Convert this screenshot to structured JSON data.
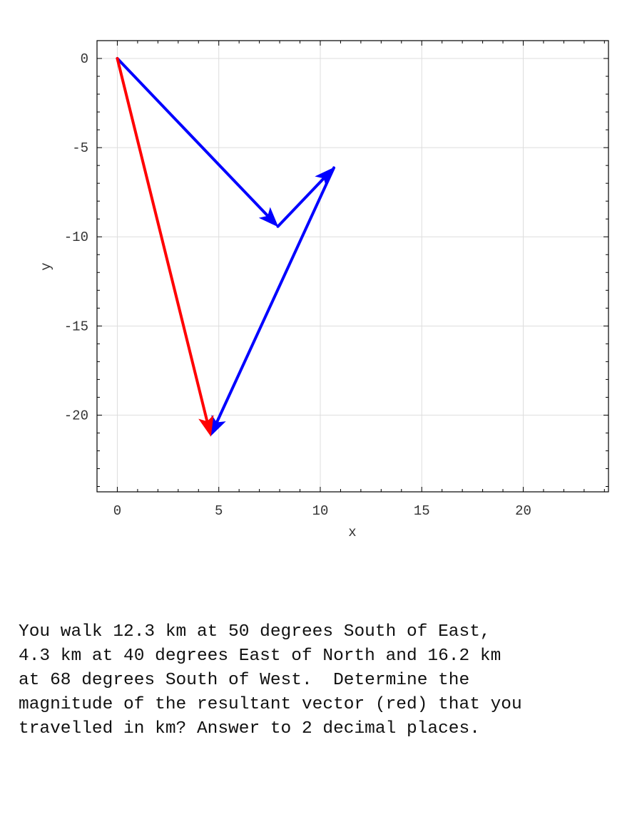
{
  "chart_data": {
    "type": "vector-plot",
    "xlabel": "x",
    "ylabel": "y",
    "xlim": [
      -1,
      24.2
    ],
    "ylim": [
      -24.3,
      1
    ],
    "xticks": [
      0,
      5,
      10,
      15,
      20
    ],
    "yticks": [
      0,
      -5,
      -10,
      -15,
      -20
    ],
    "grid": true,
    "vectors": [
      {
        "color": "#0000ff",
        "from": [
          0,
          0
        ],
        "to": [
          7.91,
          -9.42
        ]
      },
      {
        "color": "#0000ff",
        "from": [
          7.91,
          -9.42
        ],
        "to": [
          10.67,
          -6.13
        ]
      },
      {
        "color": "#0000ff",
        "from": [
          10.67,
          -6.13
        ],
        "to": [
          4.6,
          -21.15
        ]
      },
      {
        "color": "#ff0000",
        "from": [
          0,
          0
        ],
        "to": [
          4.6,
          -21.15
        ]
      }
    ]
  },
  "question": "You walk 12.3 km at 50 degrees South of East,\n4.3 km at 40 degrees East of North and 16.2 km\nat 68 degrees South of West.  Determine the\nmagnitude of the resultant vector (red) that you\ntravelled in km? Answer to 2 decimal places."
}
